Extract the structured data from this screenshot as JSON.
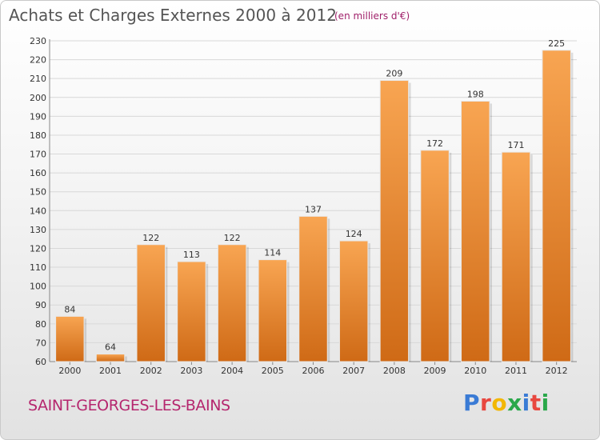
{
  "header": {
    "title": "Achats et Charges Externes 2000 à 2012",
    "subtitle": "(en milliers d'€)"
  },
  "footer": {
    "city": "SAINT-GEORGES-LES-BAINS",
    "logo": "Proxiti",
    "logo_letters": [
      "P",
      "r",
      "o",
      "x",
      "i",
      "t",
      "i"
    ]
  },
  "colors": {
    "bar_light": "#f8a552",
    "bar_dark": "#cf6a16",
    "grid": "#d8d8d8",
    "title": "#555555",
    "city": "#b5266e",
    "logo": [
      "#3a7bd5",
      "#e8473f",
      "#f2b705",
      "#2aa84a",
      "#3a7bd5",
      "#e8473f",
      "#2aa84a"
    ]
  },
  "chart_data": {
    "type": "bar",
    "title": "Achats et Charges Externes 2000 à 2012",
    "categories": [
      "2000",
      "2001",
      "2002",
      "2003",
      "2004",
      "2005",
      "2006",
      "2007",
      "2008",
      "2009",
      "2010",
      "2011",
      "2012"
    ],
    "values": [
      84,
      64,
      122,
      113,
      122,
      114,
      137,
      124,
      209,
      172,
      198,
      171,
      225
    ],
    "ylim": [
      60,
      230
    ],
    "yticks": [
      60,
      70,
      80,
      90,
      100,
      110,
      120,
      130,
      140,
      150,
      160,
      170,
      180,
      190,
      200,
      210,
      220,
      230
    ],
    "grid": true,
    "xlabel": "",
    "ylabel": ""
  }
}
